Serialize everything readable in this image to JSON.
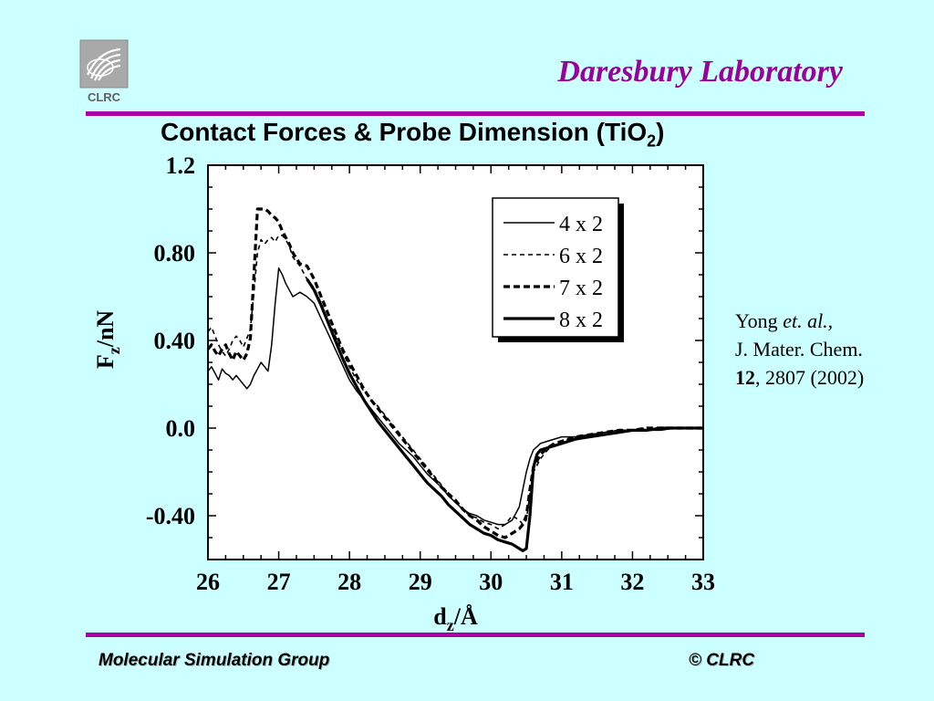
{
  "header": {
    "logo_text": "CLRC",
    "lab_name": "Daresbury Laboratory"
  },
  "title": {
    "main": "Contact Forces & Probe Dimension (TiO",
    "subscript": "2",
    "close": ")"
  },
  "citation": {
    "author": "Yong",
    "etal": "et. al.,",
    "journal": "J. Mater. Chem.",
    "volume": "12",
    "rest": ", 2807 (2002)"
  },
  "footer": {
    "left": "Molecular Simulation Group",
    "right": "© CLRC"
  },
  "colors": {
    "background": "#ccffff",
    "accent": "#aa00aa",
    "lab_text": "#990099"
  },
  "chart_data": {
    "type": "line",
    "xlabel": {
      "main": "d",
      "sub": "z",
      "rest": "/Å"
    },
    "ylabel": {
      "main": "F",
      "sub": "z",
      "rest": "/nN"
    },
    "xlim": [
      26,
      33
    ],
    "ylim": [
      -0.6,
      1.2
    ],
    "x_ticks": [
      26,
      27,
      28,
      29,
      30,
      31,
      32,
      33
    ],
    "x_tick_labels": [
      "26",
      "27",
      "28",
      "29",
      "30",
      "31",
      "32",
      "33"
    ],
    "y_ticks": [
      -0.4,
      0.0,
      0.4,
      0.8,
      1.2
    ],
    "y_tick_labels": [
      "-0.40",
      "0.0",
      "0.40",
      "0.80",
      "1.2"
    ],
    "zero_line": true,
    "legend_position": "top-right",
    "series": [
      {
        "name": "4 x 2",
        "style": "thin-solid",
        "x": [
          26.0,
          26.05,
          26.1,
          26.15,
          26.2,
          26.25,
          26.3,
          26.35,
          26.4,
          26.45,
          26.5,
          26.55,
          26.6,
          26.65,
          26.7,
          26.75,
          26.8,
          26.85,
          26.9,
          26.95,
          27.0,
          27.05,
          27.1,
          27.15,
          27.2,
          27.3,
          27.4,
          27.5,
          27.6,
          27.7,
          27.8,
          27.9,
          28.0,
          28.1,
          28.2,
          28.3,
          28.4,
          28.5,
          28.6,
          28.7,
          28.8,
          28.9,
          29.0,
          29.1,
          29.2,
          29.3,
          29.4,
          29.5,
          29.6,
          29.7,
          29.8,
          29.9,
          30.0,
          30.1,
          30.2,
          30.3,
          30.4,
          30.45,
          30.5,
          30.55,
          30.6,
          30.7,
          30.8,
          30.9,
          31.0,
          31.2,
          31.4,
          31.6,
          31.8,
          32.0,
          32.2,
          32.4,
          32.6,
          32.8,
          33.0
        ],
        "y": [
          0.26,
          0.28,
          0.25,
          0.22,
          0.27,
          0.25,
          0.24,
          0.22,
          0.24,
          0.22,
          0.2,
          0.18,
          0.2,
          0.24,
          0.27,
          0.3,
          0.28,
          0.26,
          0.38,
          0.57,
          0.73,
          0.7,
          0.66,
          0.63,
          0.6,
          0.62,
          0.6,
          0.57,
          0.5,
          0.43,
          0.36,
          0.29,
          0.22,
          0.17,
          0.13,
          0.09,
          0.05,
          0.01,
          -0.03,
          -0.07,
          -0.1,
          -0.13,
          -0.17,
          -0.21,
          -0.24,
          -0.27,
          -0.31,
          -0.34,
          -0.37,
          -0.39,
          -0.4,
          -0.42,
          -0.43,
          -0.44,
          -0.44,
          -0.42,
          -0.36,
          -0.28,
          -0.2,
          -0.14,
          -0.1,
          -0.07,
          -0.06,
          -0.05,
          -0.04,
          -0.04,
          -0.03,
          -0.02,
          -0.01,
          -0.01,
          -0.01,
          -0.01,
          0.0,
          0.0,
          0.0
        ]
      },
      {
        "name": "6 x 2",
        "style": "thin-dashed",
        "x": [
          26.0,
          26.05,
          26.1,
          26.15,
          26.2,
          26.25,
          26.3,
          26.35,
          26.4,
          26.45,
          26.5,
          26.55,
          26.6,
          26.65,
          26.7,
          26.75,
          26.8,
          26.85,
          26.9,
          26.95,
          27.0,
          27.05,
          27.1,
          27.15,
          27.2,
          27.3,
          27.4,
          27.5,
          27.6,
          27.7,
          27.8,
          27.9,
          28.0,
          28.1,
          28.2,
          28.3,
          28.4,
          28.5,
          28.6,
          28.7,
          28.8,
          28.9,
          29.0,
          29.1,
          29.2,
          29.3,
          29.4,
          29.5,
          29.6,
          29.7,
          29.8,
          29.9,
          30.0,
          30.1,
          30.2,
          30.3,
          30.4,
          30.45,
          30.5,
          30.55,
          30.6,
          30.7,
          30.8,
          30.9,
          31.0,
          31.2,
          31.4,
          31.6,
          31.8,
          32.0,
          32.2,
          32.4,
          32.6,
          32.8,
          33.0
        ],
        "y": [
          0.44,
          0.46,
          0.42,
          0.38,
          0.35,
          0.33,
          0.36,
          0.4,
          0.42,
          0.4,
          0.37,
          0.41,
          0.45,
          0.62,
          0.8,
          0.86,
          0.84,
          0.86,
          0.87,
          0.85,
          0.88,
          0.88,
          0.86,
          0.83,
          0.78,
          0.74,
          0.68,
          0.64,
          0.57,
          0.49,
          0.42,
          0.35,
          0.28,
          0.22,
          0.17,
          0.13,
          0.1,
          0.06,
          0.02,
          -0.02,
          -0.06,
          -0.1,
          -0.14,
          -0.18,
          -0.22,
          -0.26,
          -0.3,
          -0.34,
          -0.37,
          -0.4,
          -0.41,
          -0.43,
          -0.44,
          -0.46,
          -0.44,
          -0.4,
          -0.42,
          -0.44,
          -0.42,
          -0.3,
          -0.2,
          -0.14,
          -0.1,
          -0.08,
          -0.06,
          -0.04,
          -0.03,
          -0.02,
          -0.01,
          -0.01,
          0.0,
          0.0,
          0.0,
          0.0,
          0.0
        ]
      },
      {
        "name": "7 x 2",
        "style": "thick-dashed",
        "x": [
          26.0,
          26.05,
          26.1,
          26.15,
          26.2,
          26.25,
          26.3,
          26.35,
          26.4,
          26.45,
          26.5,
          26.55,
          26.6,
          26.65,
          26.7,
          26.75,
          26.8,
          26.85,
          26.9,
          26.95,
          27.0,
          27.05,
          27.1,
          27.15,
          27.2,
          27.3,
          27.4,
          27.5,
          27.6,
          27.7,
          27.8,
          27.9,
          28.0,
          28.1,
          28.2,
          28.3,
          28.4,
          28.5,
          28.6,
          28.7,
          28.8,
          28.9,
          29.0,
          29.1,
          29.2,
          29.3,
          29.4,
          29.5,
          29.6,
          29.7,
          29.8,
          29.9,
          30.0,
          30.1,
          30.2,
          30.3,
          30.4,
          30.45,
          30.5,
          30.55,
          30.6,
          30.7,
          30.8,
          30.9,
          31.0,
          31.2,
          31.4,
          31.6,
          31.8,
          32.0,
          32.2,
          32.4,
          32.6,
          32.8,
          33.0
        ],
        "y": [
          0.36,
          0.38,
          0.35,
          0.33,
          0.36,
          0.38,
          0.34,
          0.31,
          0.35,
          0.33,
          0.31,
          0.34,
          0.41,
          0.7,
          1.0,
          1.0,
          1.0,
          0.99,
          0.97,
          0.96,
          0.94,
          0.9,
          0.87,
          0.84,
          0.8,
          0.75,
          0.74,
          0.68,
          0.6,
          0.52,
          0.44,
          0.36,
          0.3,
          0.24,
          0.18,
          0.13,
          0.09,
          0.05,
          0.01,
          -0.03,
          -0.07,
          -0.11,
          -0.15,
          -0.19,
          -0.23,
          -0.27,
          -0.3,
          -0.33,
          -0.37,
          -0.4,
          -0.42,
          -0.45,
          -0.47,
          -0.49,
          -0.5,
          -0.48,
          -0.46,
          -0.44,
          -0.4,
          -0.28,
          -0.18,
          -0.12,
          -0.09,
          -0.07,
          -0.06,
          -0.04,
          -0.03,
          -0.02,
          -0.01,
          -0.01,
          0.0,
          0.0,
          0.0,
          0.0,
          0.0
        ]
      },
      {
        "name": "8 x 2",
        "style": "thick-solid",
        "x": [
          27.4,
          27.5,
          27.6,
          27.7,
          27.8,
          27.9,
          28.0,
          28.1,
          28.2,
          28.3,
          28.4,
          28.5,
          28.6,
          28.7,
          28.8,
          28.9,
          29.0,
          29.1,
          29.2,
          29.3,
          29.4,
          29.5,
          29.6,
          29.7,
          29.8,
          29.9,
          30.0,
          30.1,
          30.2,
          30.3,
          30.4,
          30.45,
          30.5,
          30.55,
          30.6,
          30.65,
          30.7,
          30.8,
          30.9,
          31.0,
          31.2,
          31.4,
          31.6,
          31.8,
          32.0,
          32.2,
          32.4,
          32.6,
          32.8,
          33.0
        ],
        "y": [
          0.68,
          0.63,
          0.56,
          0.48,
          0.4,
          0.32,
          0.25,
          0.19,
          0.13,
          0.08,
          0.03,
          -0.01,
          -0.05,
          -0.09,
          -0.13,
          -0.17,
          -0.21,
          -0.25,
          -0.28,
          -0.31,
          -0.35,
          -0.38,
          -0.41,
          -0.44,
          -0.46,
          -0.48,
          -0.49,
          -0.51,
          -0.52,
          -0.53,
          -0.55,
          -0.56,
          -0.55,
          -0.4,
          -0.18,
          -0.12,
          -0.1,
          -0.09,
          -0.08,
          -0.07,
          -0.05,
          -0.04,
          -0.03,
          -0.02,
          -0.01,
          -0.01,
          0.0,
          0.0,
          0.0,
          0.0
        ]
      }
    ]
  }
}
